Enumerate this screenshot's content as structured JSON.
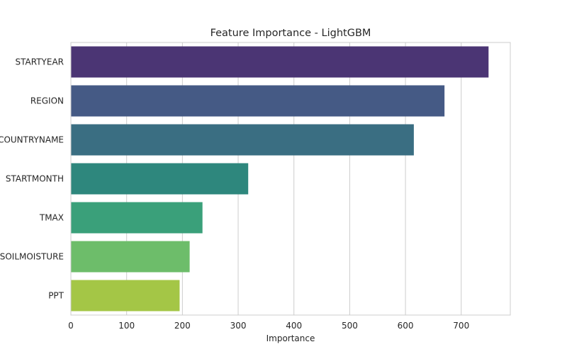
{
  "chart_data": {
    "type": "bar",
    "orientation": "horizontal",
    "title": "Feature Importance - LightGBM",
    "xlabel": "Importance",
    "ylabel": "",
    "categories": [
      "STARTYEAR",
      "REGION",
      "COUNTRYNAME",
      "STARTMONTH",
      "TMAX",
      "SOILMOISTURE",
      "PPT"
    ],
    "values": [
      749,
      670,
      615,
      318,
      236,
      213,
      195
    ],
    "colors": [
      "#4b3574",
      "#455a85",
      "#3a6e82",
      "#2e877d",
      "#3aa07a",
      "#6dbd6a",
      "#a4c646"
    ],
    "xlim": [
      0,
      788
    ],
    "xticks": [
      0,
      100,
      200,
      300,
      400,
      500,
      600,
      700
    ],
    "grid": true,
    "grid_color": "#cccccc"
  }
}
